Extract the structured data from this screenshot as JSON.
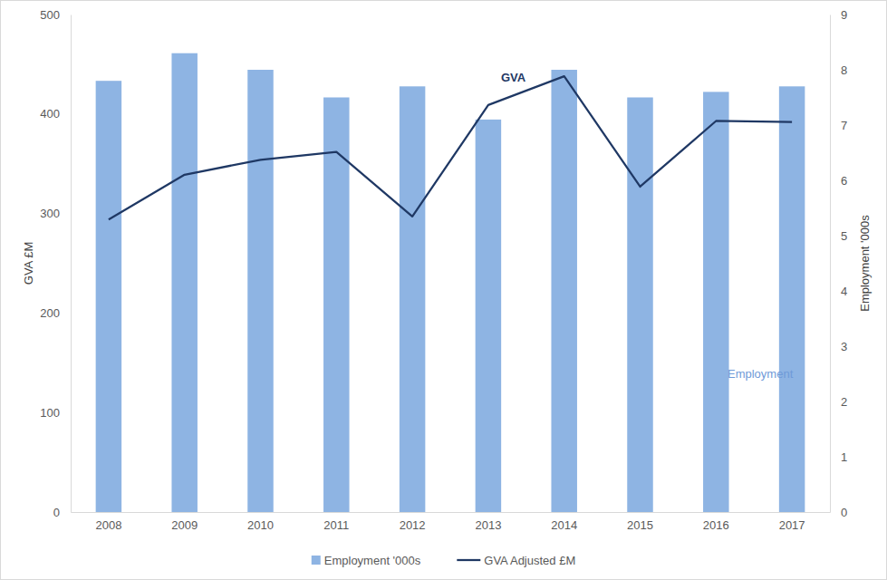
{
  "chart_data": {
    "type": "bar",
    "categories": [
      "2008",
      "2009",
      "2010",
      "2011",
      "2012",
      "2013",
      "2014",
      "2015",
      "2016",
      "2017"
    ],
    "series": [
      {
        "name": "Employment '000s",
        "type": "bar",
        "axis": "y2",
        "color": "#8eb4e3",
        "values": [
          7.8,
          8.3,
          8.0,
          7.5,
          7.7,
          7.1,
          8.0,
          7.5,
          7.6,
          7.7
        ]
      },
      {
        "name": "GVA Adjusted £M",
        "type": "line",
        "color": "#1f3864",
        "values": [
          294,
          339,
          354,
          362,
          297,
          409,
          438,
          327,
          393,
          392
        ]
      }
    ],
    "y_label": "GVA £M",
    "y2_label": "Employment '000s",
    "ylim": [
      0,
      500
    ],
    "yticks": [
      0,
      100,
      200,
      300,
      400,
      500
    ],
    "y2lim": [
      0,
      9
    ],
    "y2ticks": [
      0,
      1,
      2,
      3,
      4,
      5,
      6,
      7,
      8,
      9
    ],
    "annotations": [
      "GVA",
      "Employment"
    ],
    "grid": false,
    "legend": "bottom"
  }
}
